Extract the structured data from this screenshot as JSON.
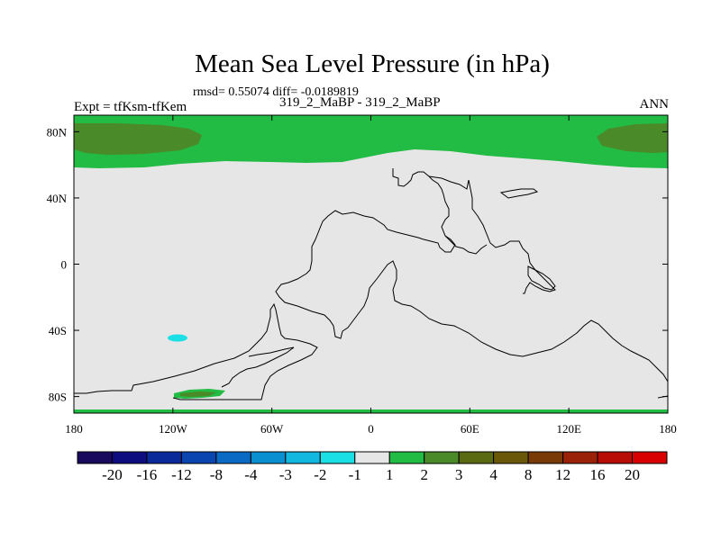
{
  "header": {
    "title": "Mean Sea Level Pressure (in hPa)",
    "stats": "rmsd= 0.55074 diff= -0.0189819",
    "experiment": "Expt = tfKsm-tfKem",
    "case": "319_2_MaBP - 319_2_MaBP",
    "season": "ANN"
  },
  "chart_data": {
    "type": "heatmap",
    "title": "Mean Sea Level Pressure (in hPa)",
    "projection": "cylindrical-equidistant",
    "xlim": [
      -180,
      180
    ],
    "ylim": [
      -90,
      90
    ],
    "x_ticks": [
      {
        "value": -180,
        "label": "180"
      },
      {
        "value": -120,
        "label": "120W"
      },
      {
        "value": -60,
        "label": "60W"
      },
      {
        "value": 0,
        "label": "0"
      },
      {
        "value": 60,
        "label": "60E"
      },
      {
        "value": 120,
        "label": "120E"
      },
      {
        "value": 180,
        "label": "180"
      }
    ],
    "y_ticks": [
      {
        "value": 80,
        "label": "80N"
      },
      {
        "value": 40,
        "label": "40N"
      },
      {
        "value": 0,
        "label": "0"
      },
      {
        "value": -40,
        "label": "40S"
      },
      {
        "value": -80,
        "label": "80S"
      }
    ],
    "background_level": "-1 to 1",
    "colorbar": {
      "labels": [
        "-20",
        "-16",
        "-12",
        "-8",
        "-4",
        "-3",
        "-2",
        "-1",
        "1",
        "2",
        "3",
        "4",
        "8",
        "12",
        "16",
        "20"
      ],
      "colors": [
        "#1a0a5e",
        "#0d0d80",
        "#0a2a9a",
        "#0a45b0",
        "#0a6ac4",
        "#0a90d0",
        "#12b8e0",
        "#1ae0e6",
        "#e6e6e6",
        "#22bb44",
        "#4a8a28",
        "#5a6a12",
        "#6a5808",
        "#7a3a08",
        "#9a2208",
        "#b80c06",
        "#d80000"
      ]
    },
    "regions": [
      {
        "name": "northern-high-latitudes",
        "level": "1 to 2",
        "color": "#22bb44"
      },
      {
        "name": "arctic-pacific-core",
        "level": "2 to 3",
        "color": "#4a8a28"
      },
      {
        "name": "south-pacific-cyan-patch",
        "level": "-2 to -1",
        "color": "#1ae0e6"
      },
      {
        "name": "antarctic-peninsula-green",
        "level": "1 to 2",
        "color": "#22bb44"
      },
      {
        "name": "antarctic-peninsula-core",
        "level": "2 to 3",
        "color": "#4a8a28"
      },
      {
        "name": "southern-edge-band",
        "level": "1 to 2",
        "color": "#22bb44"
      }
    ]
  }
}
